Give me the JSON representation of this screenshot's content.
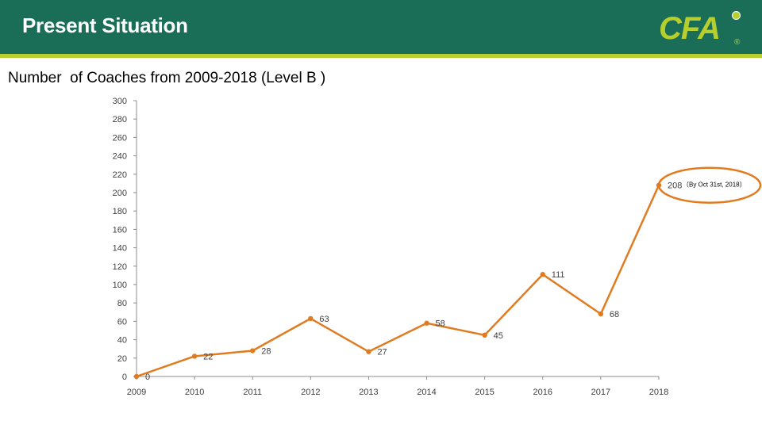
{
  "header": {
    "title": "Present Situation",
    "logo_text": "CFA",
    "logo_mark": "®"
  },
  "colors": {
    "header_bg": "#1a6e57",
    "accent": "#b6cf2d",
    "series": "#e07b20"
  },
  "chart_data": {
    "type": "line",
    "title": "Number  of Coaches from 2009-2018 (Level B )",
    "xlabel": "",
    "ylabel": "",
    "categories": [
      "2009",
      "2010",
      "2011",
      "2012",
      "2013",
      "2014",
      "2015",
      "2016",
      "2017",
      "2018"
    ],
    "values": [
      0,
      22,
      28,
      63,
      27,
      58,
      45,
      111,
      68,
      208
    ],
    "ylim": [
      0,
      300
    ],
    "yticks": [
      0,
      20,
      40,
      60,
      80,
      100,
      120,
      140,
      160,
      180,
      200,
      220,
      240,
      260,
      280,
      300
    ],
    "grid": false,
    "legend": "none",
    "data_labels": true,
    "annotation": {
      "category": "2018",
      "text": "（By Oct 31st, 2018）",
      "highlighted": true
    }
  }
}
